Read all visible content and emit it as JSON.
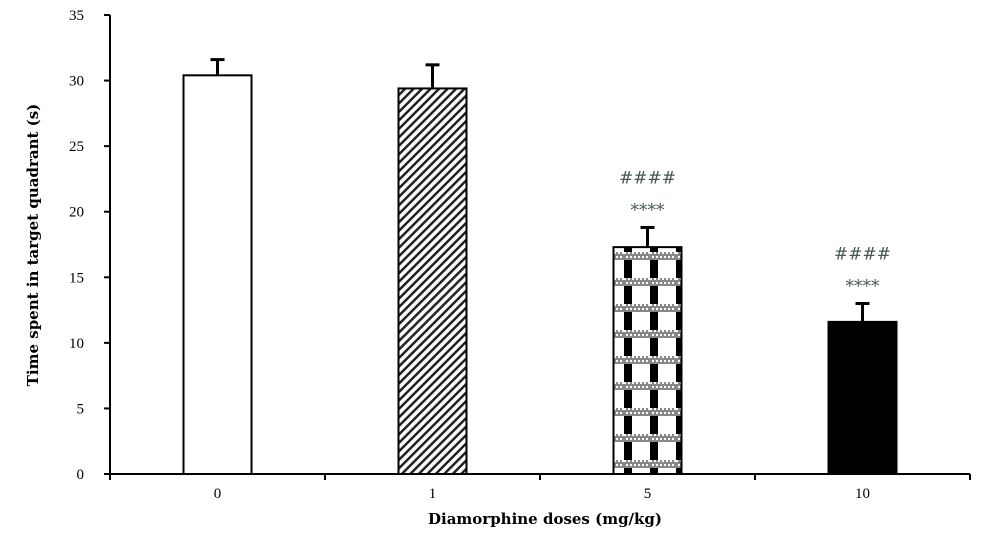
{
  "chart_data": {
    "type": "bar",
    "title": "",
    "xlabel": "Diamorphine doses (mg/kg)",
    "ylabel": "Time spent in target quadrant (s)",
    "categories": [
      "0",
      "1",
      "5",
      "10"
    ],
    "values": [
      30.4,
      29.4,
      17.3,
      11.6
    ],
    "error": [
      1.2,
      1.8,
      1.5,
      1.4
    ],
    "annotations": [
      {
        "category": "5",
        "lines": [
          "####",
          "****"
        ]
      },
      {
        "category": "10",
        "lines": [
          "####",
          "****"
        ]
      }
    ],
    "patterns": [
      "white",
      "diagonal-hatch",
      "checkered",
      "solid-black"
    ],
    "ylim": [
      0,
      35
    ],
    "yticks": [
      0,
      5,
      10,
      15,
      20,
      25,
      30,
      35
    ],
    "grid": false,
    "annotation_color": "#4a5858"
  }
}
